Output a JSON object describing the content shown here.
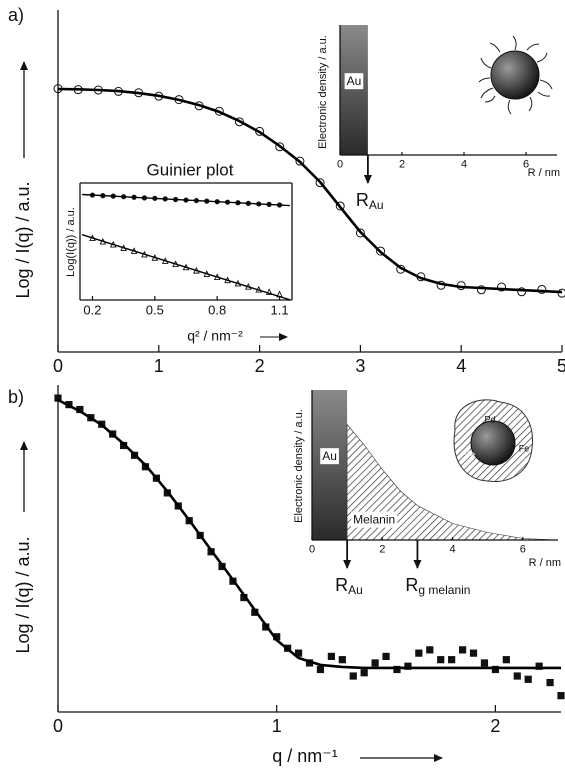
{
  "chart_data": [
    {
      "type": "scatter",
      "panel_label": "a)",
      "ylabel": "Log / I(q) / a.u.",
      "xlim": [
        0,
        5
      ],
      "xticks": [
        0,
        1,
        2,
        3,
        4,
        5
      ],
      "ylim": [
        0,
        10
      ],
      "series": [
        {
          "type": "scatter",
          "marker": "circle",
          "color": "#111111",
          "x": [
            0,
            0.2,
            0.4,
            0.6,
            0.8,
            1.0,
            1.2,
            1.4,
            1.6,
            1.8,
            2.0,
            2.2,
            2.4,
            2.6,
            2.8,
            3.0,
            3.2,
            3.4,
            3.6,
            3.8,
            4.0,
            4.2,
            4.4,
            4.6,
            4.8,
            5.0
          ],
          "values": [
            7.7,
            7.67,
            7.66,
            7.62,
            7.58,
            7.48,
            7.38,
            7.2,
            7.04,
            6.73,
            6.45,
            6.0,
            5.58,
            4.95,
            4.27,
            3.48,
            2.95,
            2.42,
            2.2,
            1.95,
            1.94,
            1.82,
            1.9,
            1.76,
            1.83,
            1.72
          ]
        },
        {
          "type": "line",
          "color": "#000000",
          "x": [
            0,
            0.2,
            0.4,
            0.6,
            0.8,
            1.0,
            1.2,
            1.4,
            1.6,
            1.8,
            2.0,
            2.2,
            2.4,
            2.6,
            2.8,
            3.0,
            3.2,
            3.4,
            3.6,
            3.8,
            4.0,
            4.2,
            4.4,
            4.6,
            4.8,
            5.0
          ],
          "values": [
            7.69,
            7.68,
            7.66,
            7.63,
            7.57,
            7.49,
            7.37,
            7.22,
            7.02,
            6.75,
            6.43,
            6.02,
            5.56,
            4.97,
            4.24,
            3.51,
            2.92,
            2.46,
            2.16,
            1.99,
            1.9,
            1.87,
            1.84,
            1.81,
            1.78,
            1.75
          ]
        }
      ]
    },
    {
      "type": "scatter",
      "title": "Guinier plot",
      "ylabel": "Log(I(q)) / a.u.",
      "xlabel": "q² / nm⁻²",
      "xlim": [
        0.14,
        1.16
      ],
      "xticks": [
        0.2,
        0.5,
        0.8,
        1.1
      ],
      "ylim": [
        0,
        10
      ],
      "series": [
        {
          "type": "scatter",
          "marker": "dot",
          "color": "#111111",
          "x": [
            0.2,
            0.25,
            0.3,
            0.35,
            0.4,
            0.45,
            0.5,
            0.55,
            0.6,
            0.65,
            0.7,
            0.75,
            0.8,
            0.85,
            0.9,
            0.95,
            1.0,
            1.05,
            1.1
          ],
          "values": [
            8.97,
            8.92,
            8.88,
            8.83,
            8.78,
            8.73,
            8.69,
            8.64,
            8.59,
            8.54,
            8.5,
            8.45,
            8.4,
            8.36,
            8.31,
            8.26,
            8.21,
            8.17,
            8.12
          ]
        },
        {
          "type": "line",
          "color": "#000000",
          "x": [
            0.15,
            1.15
          ],
          "values": [
            9.02,
            8.07
          ]
        },
        {
          "type": "scatter",
          "marker": "triangle",
          "color": "#111111",
          "x": [
            0.2,
            0.25,
            0.3,
            0.35,
            0.4,
            0.45,
            0.5,
            0.55,
            0.6,
            0.65,
            0.7,
            0.75,
            0.8,
            0.85,
            0.9,
            0.95,
            1.0,
            1.05,
            1.1
          ],
          "values": [
            5.3,
            5.0,
            4.75,
            4.45,
            4.2,
            3.9,
            3.62,
            3.35,
            3.08,
            2.8,
            2.52,
            2.24,
            1.97,
            1.7,
            1.42,
            1.15,
            0.9,
            0.7,
            0.5
          ]
        },
        {
          "type": "line",
          "color": "#000000",
          "x": [
            0.15,
            1.15
          ],
          "values": [
            5.58,
            0.02
          ]
        }
      ]
    },
    {
      "type": "area",
      "ylabel": "Electronic density / a.u.",
      "xlabel": "R / nm",
      "xlim": [
        0,
        7
      ],
      "xticks": [
        0,
        2,
        4,
        6
      ],
      "ylim": [
        0,
        10
      ],
      "regions": [
        {
          "label": "Au",
          "fill": "gradient",
          "x": [
            0,
            0.9
          ],
          "values": [
            10,
            10
          ]
        }
      ],
      "arrows": [
        {
          "x": 0.9,
          "label": "R",
          "subscript": "Au"
        }
      ]
    },
    {
      "type": "scatter",
      "panel_label": "b)",
      "ylabel": "Log / I(q) / a.u.",
      "xlabel": "q / nm⁻¹",
      "xlim": [
        0,
        2.3
      ],
      "xticks": [
        0,
        1,
        2
      ],
      "ylim": [
        0,
        10
      ],
      "series": [
        {
          "type": "scatter",
          "marker": "square",
          "color": "#111111",
          "x": [
            0,
            0.05,
            0.1,
            0.15,
            0.2,
            0.25,
            0.3,
            0.35,
            0.4,
            0.45,
            0.5,
            0.55,
            0.6,
            0.65,
            0.7,
            0.75,
            0.8,
            0.85,
            0.9,
            0.95,
            1.0,
            1.05,
            1.1,
            1.15,
            1.2,
            1.25,
            1.3,
            1.35,
            1.4,
            1.45,
            1.5,
            1.55,
            1.6,
            1.65,
            1.7,
            1.75,
            1.8,
            1.85,
            1.9,
            1.95,
            2.0,
            2.05,
            2.1,
            2.15,
            2.2,
            2.25,
            2.3
          ],
          "values": [
            9.6,
            9.4,
            9.25,
            9.0,
            8.8,
            8.5,
            8.15,
            7.85,
            7.5,
            7.15,
            6.7,
            6.3,
            5.85,
            5.4,
            4.9,
            4.45,
            4.0,
            3.5,
            3.05,
            2.6,
            2.3,
            1.95,
            1.8,
            1.5,
            1.3,
            1.7,
            1.6,
            1.1,
            1.2,
            1.5,
            1.7,
            1.3,
            1.4,
            1.8,
            1.9,
            1.6,
            1.6,
            1.9,
            1.8,
            1.5,
            1.3,
            1.6,
            1.1,
            1.0,
            1.4,
            0.9,
            0.5
          ]
        },
        {
          "type": "line",
          "color": "#000000",
          "x": [
            0,
            0.1,
            0.2,
            0.3,
            0.4,
            0.5,
            0.6,
            0.7,
            0.8,
            0.9,
            1.0,
            1.1,
            1.2,
            1.3,
            1.4,
            1.5,
            1.6,
            1.7,
            1.8,
            1.9,
            2.0,
            2.1,
            2.2,
            2.3
          ],
          "values": [
            9.54,
            9.2,
            8.78,
            8.2,
            7.55,
            6.75,
            5.87,
            4.95,
            4.04,
            3.12,
            2.2,
            1.65,
            1.44,
            1.38,
            1.35,
            1.35,
            1.35,
            1.35,
            1.35,
            1.35,
            1.35,
            1.35,
            1.35,
            1.35
          ]
        }
      ]
    },
    {
      "type": "area",
      "ylabel": "Electronic density / a.u.",
      "xlabel": "R / nm",
      "xlim": [
        0,
        7
      ],
      "xticks": [
        0,
        2,
        4,
        6
      ],
      "ylim": [
        0,
        10
      ],
      "regions": [
        {
          "label": "Au",
          "fill": "gradient",
          "x": [
            0,
            1
          ],
          "values": [
            10,
            10
          ]
        },
        {
          "label": "Melanin",
          "fill": "hatch",
          "x": [
            1,
            1.5,
            2,
            2.5,
            3,
            3.5,
            4,
            5,
            6,
            7
          ],
          "values": [
            7.7,
            6.3,
            4.7,
            3.3,
            2.3,
            1.7,
            1.1,
            0.5,
            0.1,
            0
          ]
        }
      ],
      "arrows": [
        {
          "x": 1,
          "label": "R",
          "subscript": "Au"
        },
        {
          "x": 3,
          "label": "R",
          "subscript": "g melanin"
        }
      ],
      "annotations": [
        "Pd",
        "Fe",
        "Fe"
      ]
    }
  ]
}
